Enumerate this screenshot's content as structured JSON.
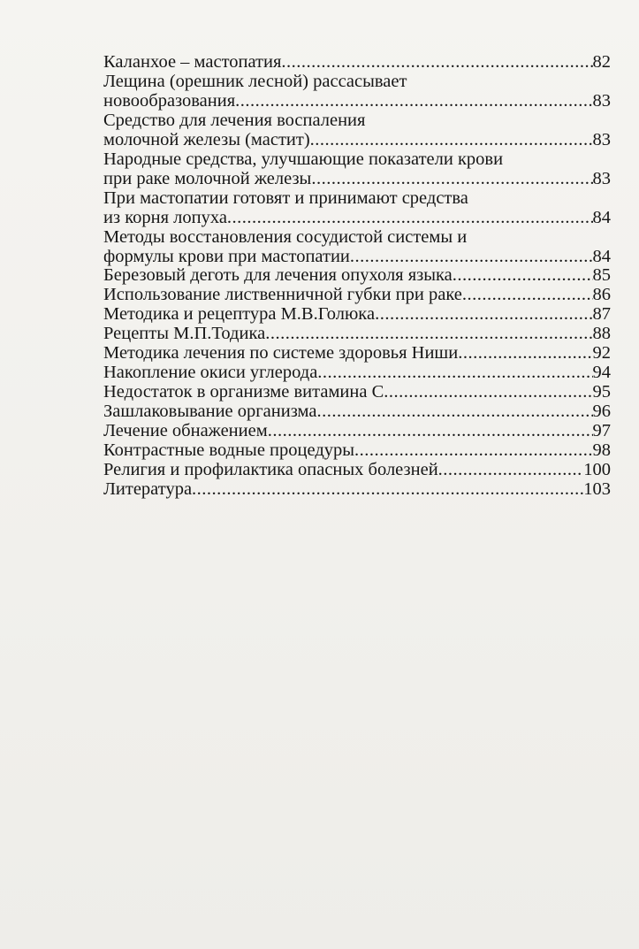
{
  "toc": [
    {
      "lines": [
        "Каланхое – мастопатия"
      ],
      "page": "82"
    },
    {
      "lines": [
        "Лещина (орешник лесной) рассасывает",
        "новообразования"
      ],
      "page": "83"
    },
    {
      "lines": [
        "Средство для лечения воспаления",
        "молочной железы (мастит)"
      ],
      "page": "83"
    },
    {
      "lines": [
        "Народные средства, улучшающие показатели крови",
        "при раке молочной железы"
      ],
      "page": "83"
    },
    {
      "lines": [
        "При мастопатии готовят и принимают средства",
        "из корня лопуха"
      ],
      "page": "84"
    },
    {
      "lines": [
        "Методы восстановления сосудистой системы и",
        "формулы крови при мастопатии"
      ],
      "page": "84"
    },
    {
      "lines": [
        "Березовый деготь для лечения опухоля языка"
      ],
      "page": "85"
    },
    {
      "lines": [
        "Использование лиственничной губки при раке"
      ],
      "page": "86"
    },
    {
      "lines": [
        "Методика и рецептура М.В.Голюка"
      ],
      "page": "87"
    },
    {
      "lines": [
        "Рецепты М.П.Тодика"
      ],
      "page": "88"
    },
    {
      "lines": [
        "Методика лечения по системе здоровья Ниши"
      ],
      "page": "92"
    },
    {
      "lines": [
        "Накопление окиси углерода "
      ],
      "page": "94"
    },
    {
      "lines": [
        "Недостаток в организме витамина С"
      ],
      "page": "95"
    },
    {
      "lines": [
        "Зашлаковывание организма"
      ],
      "page": "96"
    },
    {
      "lines": [
        "Лечение обнажением"
      ],
      "page": "97"
    },
    {
      "lines": [
        "Контрастные водные процедуры"
      ],
      "page": "98"
    },
    {
      "lines": [
        "Религия и профилактика опасных болезней"
      ],
      "page": "100"
    },
    {
      "lines": [
        "Литература"
      ],
      "page": "103"
    }
  ]
}
